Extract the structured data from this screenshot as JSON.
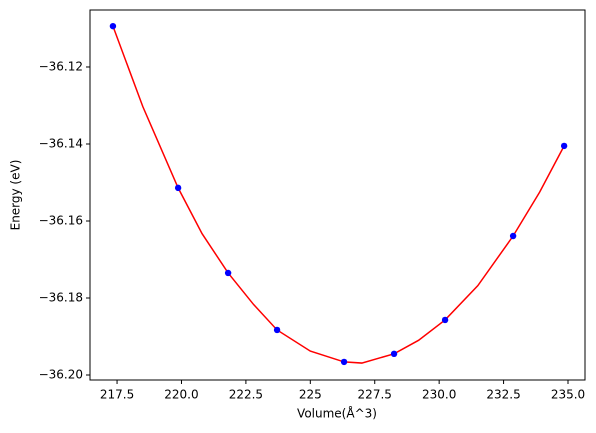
{
  "chart_data": {
    "type": "scatter",
    "x_label": "Volume(Å^3)",
    "y_label": "Energy (eV)",
    "xlim": [
      216.45,
      235.66
    ],
    "ylim": [
      -36.2013,
      -36.1052
    ],
    "xticks": [
      217.5,
      {
        "value": 220,
        "label": "220.0"
      },
      222.5,
      225,
      227.5,
      {
        "value": 230,
        "label": "230.0"
      },
      232.5,
      {
        "value": 235,
        "label": "235.0"
      }
    ],
    "yticks": [
      {
        "value": -36.12,
        "label": "−36.12"
      },
      {
        "value": -36.14,
        "label": "−36.14"
      },
      {
        "value": -36.16,
        "label": "−36.16"
      },
      {
        "value": -36.18,
        "label": "−36.18"
      },
      {
        "value": -36.2,
        "label": "−36.20"
      }
    ],
    "series": [
      {
        "style": "line",
        "color": "#ff0000",
        "x": [
          217.34,
          218.5,
          219.87,
          220.8,
          221.81,
          222.8,
          223.71,
          225.0,
          226.31,
          227.0,
          228.25,
          229.2,
          230.23,
          231.5,
          232.87,
          233.9,
          234.85
        ],
        "values": [
          -36.1094,
          -36.1303,
          -36.1514,
          -36.1633,
          -36.1735,
          -36.1817,
          -36.1883,
          -36.1938,
          -36.1966,
          -36.1969,
          -36.1945,
          -36.191,
          -36.1857,
          -36.1768,
          -36.1639,
          -36.1525,
          -36.1405
        ]
      },
      {
        "style": "marker",
        "color": "#0000ff",
        "x": [
          217.34,
          219.87,
          221.81,
          223.71,
          226.31,
          228.25,
          230.23,
          232.87,
          234.85
        ],
        "values": [
          -36.1094,
          -36.1514,
          -36.1735,
          -36.1883,
          -36.1966,
          -36.1945,
          -36.1857,
          -36.1639,
          -36.1405
        ]
      }
    ]
  }
}
